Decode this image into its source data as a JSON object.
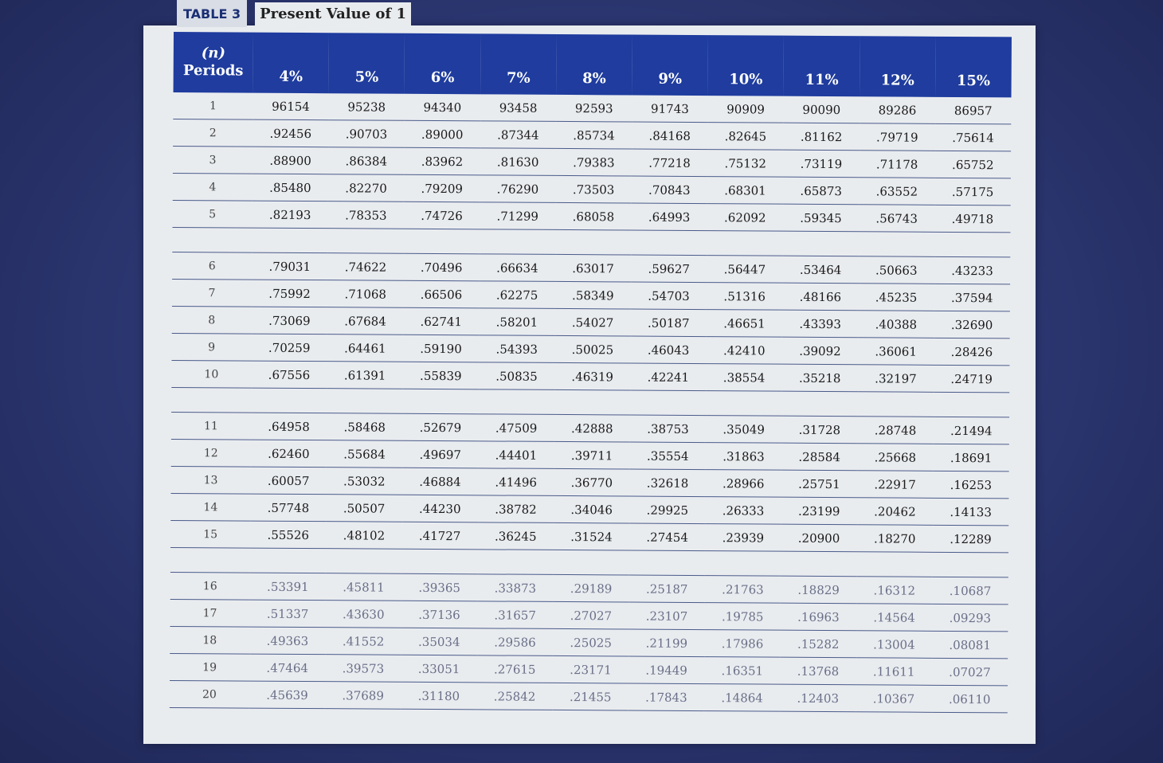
{
  "title": {
    "tag": "TABLE 3",
    "text": "Present Value of 1"
  },
  "header": {
    "periods_n": "(n)",
    "periods_label": "Periods",
    "rates": [
      "4%",
      "5%",
      "6%",
      "7%",
      "8%",
      "9%",
      "10%",
      "11%",
      "12%",
      "15%"
    ]
  },
  "rows": [
    {
      "period": "1",
      "values": [
        "96154",
        "95238",
        "94340",
        "93458",
        "92593",
        "91743",
        "90909",
        "90090",
        "89286",
        "86957"
      ]
    },
    {
      "period": "2",
      "values": [
        ".92456",
        ".90703",
        ".89000",
        ".87344",
        ".85734",
        ".84168",
        ".82645",
        ".81162",
        ".79719",
        ".75614"
      ]
    },
    {
      "period": "3",
      "values": [
        ".88900",
        ".86384",
        ".83962",
        ".81630",
        ".79383",
        ".77218",
        ".75132",
        ".73119",
        ".71178",
        ".65752"
      ]
    },
    {
      "period": "4",
      "values": [
        ".85480",
        ".82270",
        ".79209",
        ".76290",
        ".73503",
        ".70843",
        ".68301",
        ".65873",
        ".63552",
        ".57175"
      ]
    },
    {
      "period": "5",
      "values": [
        ".82193",
        ".78353",
        ".74726",
        ".71299",
        ".68058",
        ".64993",
        ".62092",
        ".59345",
        ".56743",
        ".49718"
      ]
    },
    {
      "period": "6",
      "values": [
        ".79031",
        ".74622",
        ".70496",
        ".66634",
        ".63017",
        ".59627",
        ".56447",
        ".53464",
        ".50663",
        ".43233"
      ]
    },
    {
      "period": "7",
      "values": [
        ".75992",
        ".71068",
        ".66506",
        ".62275",
        ".58349",
        ".54703",
        ".51316",
        ".48166",
        ".45235",
        ".37594"
      ]
    },
    {
      "period": "8",
      "values": [
        ".73069",
        ".67684",
        ".62741",
        ".58201",
        ".54027",
        ".50187",
        ".46651",
        ".43393",
        ".40388",
        ".32690"
      ]
    },
    {
      "period": "9",
      "values": [
        ".70259",
        ".64461",
        ".59190",
        ".54393",
        ".50025",
        ".46043",
        ".42410",
        ".39092",
        ".36061",
        ".28426"
      ]
    },
    {
      "period": "10",
      "values": [
        ".67556",
        ".61391",
        ".55839",
        ".50835",
        ".46319",
        ".42241",
        ".38554",
        ".35218",
        ".32197",
        ".24719"
      ]
    },
    {
      "period": "11",
      "values": [
        ".64958",
        ".58468",
        ".52679",
        ".47509",
        ".42888",
        ".38753",
        ".35049",
        ".31728",
        ".28748",
        ".21494"
      ]
    },
    {
      "period": "12",
      "values": [
        ".62460",
        ".55684",
        ".49697",
        ".44401",
        ".39711",
        ".35554",
        ".31863",
        ".28584",
        ".25668",
        ".18691"
      ]
    },
    {
      "period": "13",
      "values": [
        ".60057",
        ".53032",
        ".46884",
        ".41496",
        ".36770",
        ".32618",
        ".28966",
        ".25751",
        ".22917",
        ".16253"
      ]
    },
    {
      "period": "14",
      "values": [
        ".57748",
        ".50507",
        ".44230",
        ".38782",
        ".34046",
        ".29925",
        ".26333",
        ".23199",
        ".20462",
        ".14133"
      ]
    },
    {
      "period": "15",
      "values": [
        ".55526",
        ".48102",
        ".41727",
        ".36245",
        ".31524",
        ".27454",
        ".23939",
        ".20900",
        ".18270",
        ".12289"
      ]
    },
    {
      "period": "16",
      "values": [
        ".53391",
        ".45811",
        ".39365",
        ".33873",
        ".29189",
        ".25187",
        ".21763",
        ".18829",
        ".16312",
        ".10687"
      ]
    },
    {
      "period": "17",
      "values": [
        ".51337",
        ".43630",
        ".37136",
        ".31657",
        ".27027",
        ".23107",
        ".19785",
        ".16963",
        ".14564",
        ".09293"
      ]
    },
    {
      "period": "18",
      "values": [
        ".49363",
        ".41552",
        ".35034",
        ".29586",
        ".25025",
        ".21199",
        ".17986",
        ".15282",
        ".13004",
        ".08081"
      ]
    },
    {
      "period": "19",
      "values": [
        ".47464",
        ".39573",
        ".33051",
        ".27615",
        ".23171",
        ".19449",
        ".16351",
        ".13768",
        ".11611",
        ".07027"
      ]
    },
    {
      "period": "20",
      "values": [
        ".45639",
        ".37689",
        ".31180",
        ".25842",
        ".21455",
        ".17843",
        ".14864",
        ".12403",
        ".10367",
        ".06110"
      ]
    }
  ]
}
